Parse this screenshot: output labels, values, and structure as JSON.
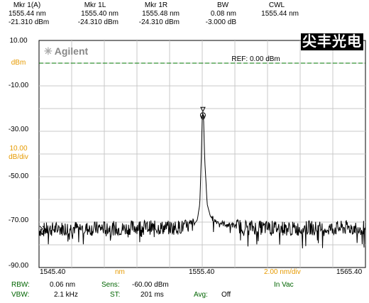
{
  "markers": [
    {
      "title": "Mkr 1(A)",
      "line1": "1555.44 nm",
      "line2": "-21.310 dBm"
    },
    {
      "title": "Mkr 1L",
      "line1": "1555.40 nm",
      "line2": "-24.310 dBm"
    },
    {
      "title": "Mkr 1R",
      "line1": "1555.48 nm",
      "line2": "-24.310 dBm"
    },
    {
      "title": "BW",
      "line1": "0.08 nm",
      "line2": "-3.000 dB"
    },
    {
      "title": "CWL",
      "line1": "1555.44 nm",
      "line2": ""
    }
  ],
  "logo_text": "Agilent",
  "watermark": "尖丰光电",
  "y_labels": {
    "top": "10.00",
    "unit": "dBm",
    "l1": "-10.00",
    "l2": "-30.00",
    "scale_val": "10.00",
    "scale_unit": "dB/div",
    "l3": "-50.00",
    "l4": "-70.00",
    "bottom": "-90.00"
  },
  "x_labels": {
    "start": "1545.40",
    "unit": "nm",
    "center": "1555.40",
    "span": "2.00 nm/div",
    "end": "1565.40"
  },
  "ref_label": "REF: 0.00 dBm",
  "footer": {
    "rbw_label": "RBW:",
    "rbw_value": "0.06 nm",
    "sens_label": "Sens:",
    "sens_value": "-60.00 dBm",
    "vac_label": "In Vac",
    "vbw_label": "VBW:",
    "vbw_value": "2.1 kHz",
    "st_label": "ST:",
    "st_value": "201 ms",
    "avg_label": "Avg:",
    "avg_value": "Off"
  },
  "colors": {
    "trace": "#000000",
    "ref_line": "#007700",
    "grid": "#c8c8c8",
    "label_green": "#006400",
    "label_orange": "#e69a00"
  },
  "chart_data": {
    "type": "line",
    "xlim": [
      1545.4,
      1565.4
    ],
    "ylim": [
      -90,
      10
    ],
    "y_unit": "dBm",
    "ref_level": 0,
    "grid": true,
    "series": [
      {
        "x": [
          1545.4,
          1546.5,
          1547.5,
          1548.5,
          1549.5,
          1550.5,
          1551.5,
          1552.5,
          1553.5,
          1554.5,
          1554.9,
          1555.1,
          1555.25,
          1555.35,
          1555.4,
          1555.44,
          1555.48,
          1555.55,
          1555.7,
          1555.9,
          1556.2,
          1556.6,
          1557.2,
          1558.0,
          1559.0,
          1560.0,
          1561.0,
          1562.0,
          1563.0,
          1564.0,
          1565.4
        ],
        "y": [
          -73.5,
          -73,
          -72.5,
          -73,
          -72.5,
          -73,
          -72,
          -72.5,
          -72.5,
          -72,
          -71,
          -69,
          -62,
          -40,
          -24.3,
          -21.3,
          -24.3,
          -42,
          -62,
          -67.5,
          -69.5,
          -70.5,
          -71.5,
          -72,
          -72.5,
          -72.5,
          -73,
          -72.5,
          -73,
          -72.5,
          -72.5
        ]
      }
    ],
    "marker": {
      "x": 1555.44,
      "y": -21.31
    }
  }
}
